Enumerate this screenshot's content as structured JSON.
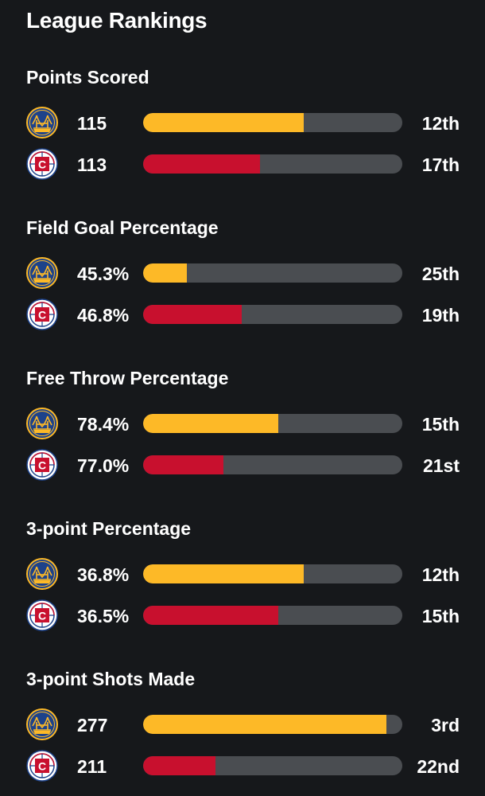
{
  "title": "League Rankings",
  "colors": {
    "background": "#16181b",
    "track": "#4a4d51",
    "warriors": "#fdb927",
    "clippers": "#c8102e"
  },
  "teams": [
    {
      "name_icon": "warriors-logo-icon",
      "color": "#fdb927"
    },
    {
      "name_icon": "clippers-logo-icon",
      "color": "#c8102e"
    }
  ],
  "sections": [
    {
      "title": "Points Scored",
      "rows": [
        {
          "team": "warriors",
          "value": "115",
          "rank": "12th",
          "fill": 0.62
        },
        {
          "team": "clippers",
          "value": "113",
          "rank": "17th",
          "fill": 0.45
        }
      ]
    },
    {
      "title": "Field Goal Percentage",
      "rows": [
        {
          "team": "warriors",
          "value": "45.3%",
          "rank": "25th",
          "fill": 0.17
        },
        {
          "team": "clippers",
          "value": "46.8%",
          "rank": "19th",
          "fill": 0.38
        }
      ]
    },
    {
      "title": "Free Throw Percentage",
      "rows": [
        {
          "team": "warriors",
          "value": "78.4%",
          "rank": "15th",
          "fill": 0.52
        },
        {
          "team": "clippers",
          "value": "77.0%",
          "rank": "21st",
          "fill": 0.31
        }
      ]
    },
    {
      "title": "3-point Percentage",
      "rows": [
        {
          "team": "warriors",
          "value": "36.8%",
          "rank": "12th",
          "fill": 0.62
        },
        {
          "team": "clippers",
          "value": "36.5%",
          "rank": "15th",
          "fill": 0.52
        }
      ]
    },
    {
      "title": "3-point Shots Made",
      "rows": [
        {
          "team": "warriors",
          "value": "277",
          "rank": "3rd",
          "fill": 0.94
        },
        {
          "team": "clippers",
          "value": "211",
          "rank": "22nd",
          "fill": 0.28
        }
      ]
    }
  ]
}
